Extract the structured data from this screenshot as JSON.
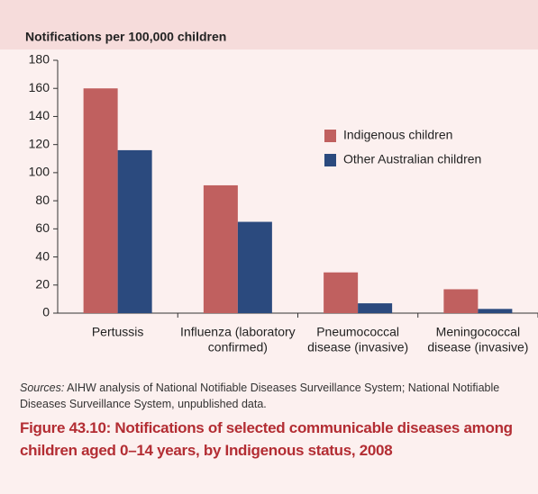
{
  "chart_data": {
    "type": "bar",
    "y_label": "Notifications per 100,000 children",
    "categories": [
      [
        "Pertussis"
      ],
      [
        "Influenza (laboratory",
        "confirmed)"
      ],
      [
        "Pneumococcal",
        "disease (invasive)"
      ],
      [
        "Meningococcal",
        "disease (invasive)"
      ]
    ],
    "series": [
      {
        "name": "Indigenous children",
        "color": "#c0605f",
        "values": [
          160,
          91,
          29,
          17
        ]
      },
      {
        "name": "Other Australian children",
        "color": "#2b4a7e",
        "values": [
          116,
          65,
          7,
          3
        ]
      }
    ],
    "ylim": [
      0,
      180
    ],
    "yticks": [
      0,
      20,
      40,
      60,
      80,
      100,
      120,
      140,
      160,
      180
    ]
  },
  "sources_label": "Sources:",
  "sources_text": "AIHW analysis of National Notifiable Diseases Surveillance System; National Notifiable Diseases Surveillance System, unpublished data.",
  "caption": "Figure 43.10: Notifications of selected communicable diseases among children aged 0–14 years, by Indigenous status, 2008"
}
